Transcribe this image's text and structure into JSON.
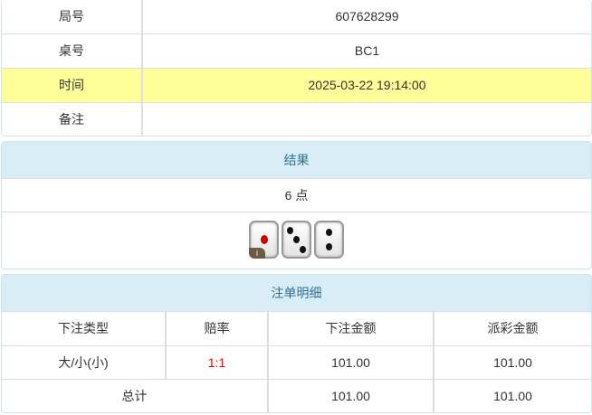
{
  "info": {
    "rows": [
      {
        "label": "局号",
        "value": "607628299"
      },
      {
        "label": "桌号",
        "value": "BC1"
      },
      {
        "label": "时间",
        "value": "2025-03-22 19:14:00"
      },
      {
        "label": "备注",
        "value": ""
      }
    ]
  },
  "result": {
    "title": "结果",
    "points": "6 点",
    "dice": [
      1,
      3,
      2
    ],
    "info_badge": "i"
  },
  "bets": {
    "title": "注单明细",
    "headers": [
      "下注类型",
      "赔率",
      "下注金额",
      "派彩金额"
    ],
    "rows": [
      {
        "type": "大/小(小)",
        "odds": "1:1",
        "amount": "101.00",
        "payout": "101.00"
      }
    ],
    "total": {
      "label": "总计",
      "amount": "101.00",
      "payout": "101.00"
    }
  },
  "colors": {
    "highlight": "#ffff99",
    "header_bg": "#d9edf7",
    "odds": "#ee0000"
  }
}
